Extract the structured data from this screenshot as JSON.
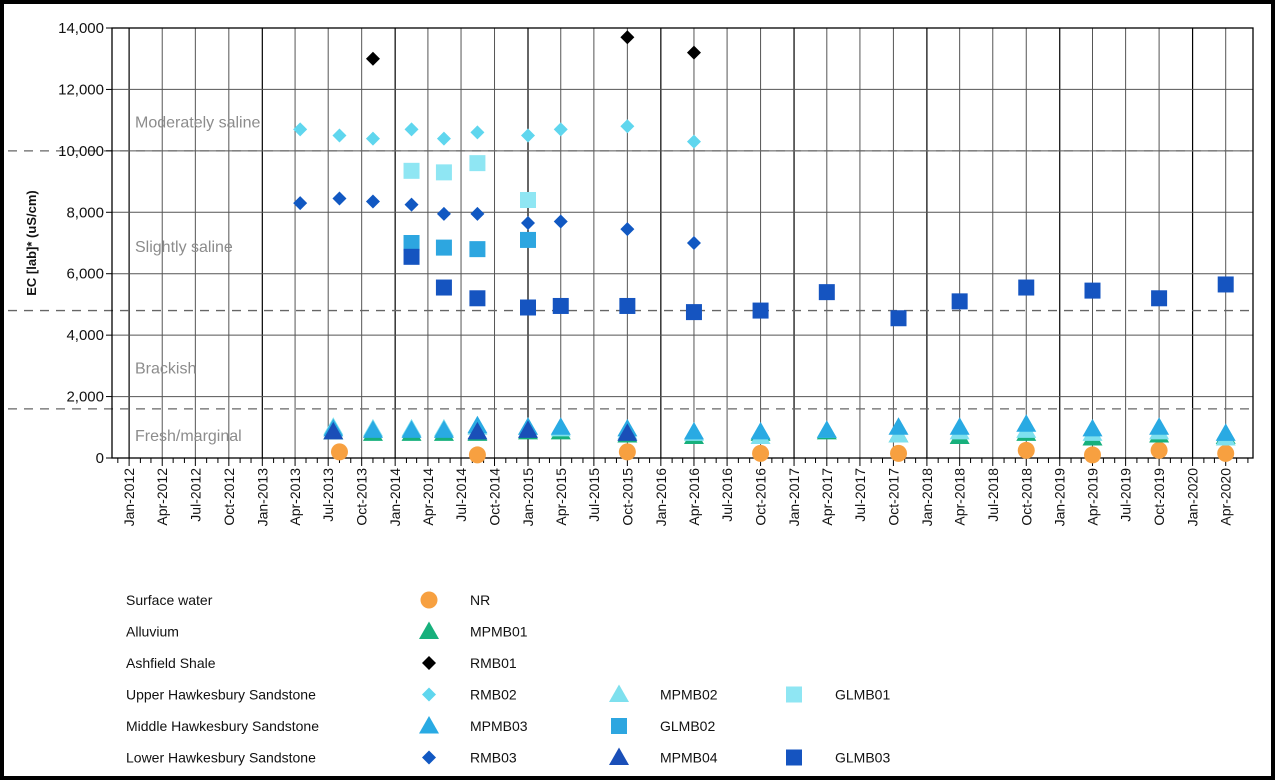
{
  "chart_data": {
    "type": "scatter",
    "ylabel": "EC [lab]* (uS/cm)",
    "ylim": [
      0,
      14000
    ],
    "yticks": [
      0,
      2000,
      4000,
      6000,
      8000,
      10000,
      12000,
      14000
    ],
    "ytick_labels": [
      "0",
      "2,000",
      "4,000",
      "6,000",
      "8,000",
      "10,000",
      "12,000",
      "14,000"
    ],
    "xlim": [
      "2011-11-15",
      "2020-06-15"
    ],
    "xtick_labels": [
      "Jan-2012",
      "Apr-2012",
      "Jul-2012",
      "Oct-2012",
      "Jan-2013",
      "Apr-2013",
      "Jul-2013",
      "Oct-2013",
      "Jan-2014",
      "Apr-2014",
      "Jul-2014",
      "Oct-2014",
      "Jan-2015",
      "Apr-2015",
      "Jul-2015",
      "Oct-2015",
      "Jan-2016",
      "Apr-2016",
      "Jul-2016",
      "Oct-2016",
      "Jan-2017",
      "Apr-2017",
      "Jul-2017",
      "Oct-2017",
      "Jan-2018",
      "Apr-2018",
      "Jul-2018",
      "Oct-2018",
      "Jan-2019",
      "Apr-2019",
      "Jul-2019",
      "Oct-2019",
      "Jan-2020",
      "Apr-2020"
    ],
    "grid": true,
    "thresholds": [
      1600,
      4800,
      10000
    ],
    "zones": [
      {
        "label": "Moderately saline",
        "y": 10950
      },
      {
        "label": "Slightly saline",
        "y": 6900
      },
      {
        "label": "Brackish",
        "y": 2950
      },
      {
        "label": "Fresh/marginal",
        "y": 750
      }
    ],
    "series": [
      {
        "name": "NR",
        "group": "Surface water",
        "marker": "circle",
        "color": "#f7a040",
        "points": [
          [
            "2013-08-01",
            200
          ],
          [
            "2014-08-15",
            100
          ],
          [
            "2015-10-01",
            200
          ],
          [
            "2016-10-01",
            150
          ],
          [
            "2017-10-15",
            150
          ],
          [
            "2018-10-01",
            250
          ],
          [
            "2019-04-01",
            100
          ],
          [
            "2019-10-01",
            250
          ],
          [
            "2020-04-01",
            150
          ]
        ]
      },
      {
        "name": "MPMB01",
        "group": "Alluvium",
        "marker": "triangle",
        "color": "#17b07c",
        "points": [
          [
            "2013-07-15",
            850
          ],
          [
            "2013-11-01",
            800
          ],
          [
            "2014-02-15",
            800
          ],
          [
            "2014-05-15",
            800
          ],
          [
            "2014-08-15",
            800
          ],
          [
            "2015-01-01",
            850
          ],
          [
            "2015-04-01",
            850
          ],
          [
            "2015-10-01",
            750
          ],
          [
            "2016-04-01",
            700
          ],
          [
            "2016-10-01",
            800
          ],
          [
            "2017-04-01",
            850
          ],
          [
            "2017-10-15",
            750
          ],
          [
            "2018-04-01",
            700
          ],
          [
            "2018-10-01",
            800
          ],
          [
            "2019-04-01",
            650
          ],
          [
            "2019-10-01",
            750
          ],
          [
            "2020-04-01",
            700
          ]
        ]
      },
      {
        "name": "RMB01",
        "group": "Ashfield Shale",
        "marker": "diamond",
        "color": "#000000",
        "points": [
          [
            "2013-11-01",
            13000
          ],
          [
            "2015-10-01",
            13700
          ],
          [
            "2016-04-01",
            13200
          ]
        ]
      },
      {
        "name": "RMB02",
        "group": "Upper Hawkesbury Sandstone",
        "marker": "diamond",
        "color": "#5fd6ee",
        "points": [
          [
            "2013-04-15",
            10700
          ],
          [
            "2013-08-01",
            10500
          ],
          [
            "2013-11-01",
            10400
          ],
          [
            "2014-02-15",
            10700
          ],
          [
            "2014-05-15",
            10400
          ],
          [
            "2014-08-15",
            10600
          ],
          [
            "2015-01-01",
            10500
          ],
          [
            "2015-04-01",
            10700
          ],
          [
            "2015-10-01",
            10800
          ],
          [
            "2016-04-01",
            10300
          ]
        ]
      },
      {
        "name": "MPMB02",
        "group": "Upper Hawkesbury Sandstone",
        "marker": "triangle",
        "color": "#7ee0ee",
        "points": [
          [
            "2013-07-15",
            1000
          ],
          [
            "2013-11-01",
            950
          ],
          [
            "2014-02-15",
            950
          ],
          [
            "2014-05-15",
            950
          ],
          [
            "2014-08-15",
            1000
          ],
          [
            "2015-01-01",
            1000
          ],
          [
            "2015-04-01",
            950
          ],
          [
            "2015-10-01",
            850
          ],
          [
            "2016-04-01",
            800
          ],
          [
            "2016-10-01",
            700
          ],
          [
            "2017-04-01",
            900
          ],
          [
            "2017-10-15",
            750
          ],
          [
            "2018-04-01",
            850
          ],
          [
            "2018-10-01",
            900
          ],
          [
            "2019-04-01",
            800
          ],
          [
            "2019-10-01",
            850
          ],
          [
            "2020-04-01",
            650
          ]
        ]
      },
      {
        "name": "GLMB01",
        "group": "Upper Hawkesbury Sandstone",
        "marker": "square",
        "color": "#8fe6f3",
        "points": [
          [
            "2014-02-15",
            9350
          ],
          [
            "2014-05-15",
            9300
          ],
          [
            "2014-08-15",
            9600
          ],
          [
            "2015-01-01",
            8400
          ]
        ]
      },
      {
        "name": "MPMB03",
        "group": "Middle Hawkesbury Sandstone",
        "marker": "triangle",
        "color": "#29aae3",
        "points": [
          [
            "2013-07-15",
            950
          ],
          [
            "2013-11-01",
            900
          ],
          [
            "2014-02-15",
            900
          ],
          [
            "2014-05-15",
            900
          ],
          [
            "2014-08-15",
            1050
          ],
          [
            "2015-01-01",
            1000
          ],
          [
            "2015-04-01",
            1000
          ],
          [
            "2015-10-01",
            950
          ],
          [
            "2016-04-01",
            850
          ],
          [
            "2016-10-01",
            850
          ],
          [
            "2017-04-01",
            900
          ],
          [
            "2017-10-15",
            1000
          ],
          [
            "2018-04-01",
            1000
          ],
          [
            "2018-10-01",
            1100
          ],
          [
            "2019-04-01",
            950
          ],
          [
            "2019-10-01",
            1000
          ],
          [
            "2020-04-01",
            800
          ]
        ]
      },
      {
        "name": "GLMB02",
        "group": "Middle Hawkesbury Sandstone",
        "marker": "square",
        "color": "#2da6e0",
        "points": [
          [
            "2014-02-15",
            7000
          ],
          [
            "2014-05-15",
            6850
          ],
          [
            "2014-08-15",
            6800
          ],
          [
            "2015-01-01",
            7100
          ]
        ]
      },
      {
        "name": "RMB03",
        "group": "Lower Hawkesbury Sandstone",
        "marker": "diamond",
        "color": "#1158c2",
        "points": [
          [
            "2013-04-15",
            8300
          ],
          [
            "2013-08-01",
            8450
          ],
          [
            "2013-11-01",
            8350
          ],
          [
            "2014-02-15",
            8250
          ],
          [
            "2014-05-15",
            7950
          ],
          [
            "2014-08-15",
            7950
          ],
          [
            "2015-01-01",
            7650
          ],
          [
            "2015-04-01",
            7700
          ],
          [
            "2015-10-01",
            7450
          ],
          [
            "2016-04-01",
            7000
          ]
        ]
      },
      {
        "name": "MPMB04",
        "group": "Lower Hawkesbury Sandstone",
        "marker": "triangle",
        "color": "#1a4fb8",
        "points": [
          [
            "2013-07-15",
            850
          ],
          [
            "2014-08-15",
            850
          ],
          [
            "2015-01-01",
            900
          ],
          [
            "2015-10-01",
            800
          ]
        ]
      },
      {
        "name": "GLMB03",
        "group": "Lower Hawkesbury Sandstone",
        "marker": "square",
        "color": "#1554c0",
        "points": [
          [
            "2014-02-15",
            6550
          ],
          [
            "2014-05-15",
            5550
          ],
          [
            "2014-08-15",
            5200
          ],
          [
            "2015-01-01",
            4900
          ],
          [
            "2015-04-01",
            4950
          ],
          [
            "2015-10-01",
            4950
          ],
          [
            "2016-04-01",
            4750
          ],
          [
            "2016-10-01",
            4800
          ],
          [
            "2017-04-01",
            5400
          ],
          [
            "2017-10-15",
            4550
          ],
          [
            "2018-04-01",
            5100
          ],
          [
            "2018-10-01",
            5550
          ],
          [
            "2019-04-01",
            5450
          ],
          [
            "2019-10-01",
            5200
          ],
          [
            "2020-04-01",
            5650
          ]
        ]
      }
    ],
    "legend": {
      "placement": "bottom",
      "rows": [
        {
          "label": "Surface water",
          "series": [
            "NR"
          ]
        },
        {
          "label": "Alluvium",
          "series": [
            "MPMB01"
          ]
        },
        {
          "label": "Ashfield Shale",
          "series": [
            "RMB01"
          ]
        },
        {
          "label": "Upper Hawkesbury Sandstone",
          "series": [
            "RMB02",
            "MPMB02",
            "GLMB01"
          ]
        },
        {
          "label": "Middle Hawkesbury Sandstone",
          "series": [
            "MPMB03",
            "GLMB02"
          ]
        },
        {
          "label": "Lower Hawkesbury Sandstone",
          "series": [
            "RMB03",
            "MPMB04",
            "GLMB03"
          ]
        }
      ]
    }
  }
}
